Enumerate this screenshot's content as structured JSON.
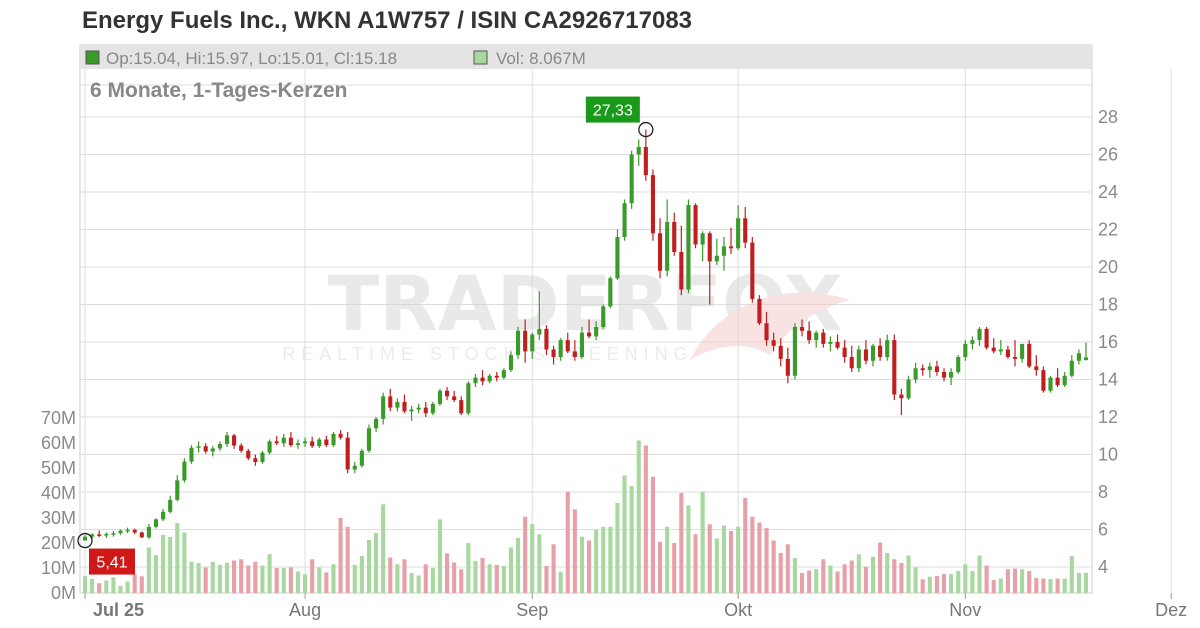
{
  "title": "Energy Fuels Inc., WKN A1W757 / ISIN CA2926717083",
  "info": {
    "ohlc": "Op:15.04, Hi:15.97, Lo:15.01, Cl:15.18",
    "volume": "Vol: 8.067M",
    "ohlc_color": "#3a9a2a",
    "volume_color": "#a8d8a0"
  },
  "period_label": "6 Monate, 1-Tages-Kerzen",
  "watermark": {
    "main": "TRADERFOX",
    "sub": "REALTIME STOCK SCREENING"
  },
  "colors": {
    "up": "#3a9a2a",
    "down": "#c01f1f",
    "vol_up": "#a8d8a0",
    "vol_down": "#e8a0a8",
    "grid": "#dddddd",
    "header_band": "#e4e4e4",
    "max_marker": "#1a9a1a",
    "min_marker": "#d01818"
  },
  "chart_data": {
    "type": "candlestick",
    "price_ticks": [
      "4",
      "6",
      "8",
      "10",
      "12",
      "14",
      "16",
      "18",
      "20",
      "22",
      "24",
      "26",
      "28"
    ],
    "volume_ticks": [
      "0M",
      "10M",
      "20M",
      "30M",
      "40M",
      "50M",
      "60M",
      "70M"
    ],
    "months": [
      "Jul 25",
      "Aug",
      "Sep",
      "Okt",
      "Nov",
      "Dez"
    ],
    "max_label": "27,33",
    "min_label": "5,41",
    "ylim": [
      3,
      29
    ],
    "vol_lim": [
      0,
      70
    ],
    "candles": [
      [
        5.41,
        5.7,
        5.41,
        5.62,
        6.7
      ],
      [
        5.62,
        5.8,
        5.5,
        5.74,
        5.6
      ],
      [
        5.74,
        5.95,
        5.6,
        5.68,
        3.9
      ],
      [
        5.68,
        5.85,
        5.55,
        5.76,
        5.0
      ],
      [
        5.76,
        5.92,
        5.62,
        5.8,
        6.3
      ],
      [
        5.8,
        6.0,
        5.7,
        5.94,
        2.8
      ],
      [
        5.94,
        6.1,
        5.8,
        5.98,
        4.6
      ],
      [
        5.98,
        6.05,
        5.75,
        5.84,
        7.5
      ],
      [
        5.84,
        5.9,
        5.55,
        5.58,
        6.7
      ],
      [
        5.58,
        6.3,
        5.5,
        6.14,
        18.2
      ],
      [
        6.14,
        6.6,
        6.05,
        6.54,
        15.2
      ],
      [
        6.54,
        7.1,
        6.45,
        6.94,
        23.2
      ],
      [
        6.94,
        7.8,
        6.85,
        7.58,
        22.4
      ],
      [
        7.58,
        8.9,
        7.5,
        8.62,
        28.0
      ],
      [
        8.62,
        9.8,
        8.5,
        9.62,
        24.2
      ],
      [
        9.62,
        10.5,
        9.5,
        10.36,
        12.5
      ],
      [
        10.36,
        10.7,
        10.1,
        10.44,
        12.0
      ],
      [
        10.44,
        10.6,
        10.05,
        10.16,
        10.2
      ],
      [
        10.16,
        10.45,
        9.9,
        10.32,
        12.5
      ],
      [
        10.32,
        10.7,
        10.2,
        10.56,
        11.2
      ],
      [
        10.56,
        11.2,
        10.4,
        11.02,
        12.0
      ],
      [
        11.02,
        11.1,
        10.3,
        10.48,
        13.0
      ],
      [
        10.48,
        10.6,
        10.1,
        10.2,
        13.5
      ],
      [
        10.2,
        10.3,
        9.7,
        9.8,
        11.0
      ],
      [
        9.8,
        10.0,
        9.4,
        9.6,
        12.5
      ],
      [
        9.6,
        10.2,
        9.5,
        10.1,
        11.0
      ],
      [
        10.1,
        10.8,
        10.0,
        10.7,
        15.5
      ],
      [
        10.7,
        11.0,
        10.5,
        10.6,
        10.0
      ],
      [
        10.6,
        11.1,
        10.4,
        10.9,
        10.0
      ],
      [
        10.9,
        11.2,
        10.4,
        10.5,
        10.2
      ],
      [
        10.5,
        10.8,
        10.3,
        10.6,
        8.6
      ],
      [
        10.6,
        10.9,
        10.4,
        10.7,
        7.5
      ],
      [
        10.7,
        10.95,
        10.35,
        10.45,
        13.5
      ],
      [
        10.45,
        10.9,
        10.35,
        10.8,
        10.2
      ],
      [
        10.8,
        11.0,
        10.4,
        10.5,
        8.2
      ],
      [
        10.5,
        11.2,
        10.4,
        11.1,
        11.5
      ],
      [
        11.1,
        11.3,
        10.8,
        10.9,
        30.0
      ],
      [
        10.9,
        11.2,
        9.0,
        9.2,
        26.5
      ],
      [
        9.2,
        9.6,
        9.0,
        9.4,
        11.2
      ],
      [
        9.4,
        10.3,
        9.3,
        10.2,
        14.8
      ],
      [
        10.2,
        11.6,
        10.1,
        11.4,
        21.2
      ],
      [
        11.4,
        12.0,
        11.2,
        11.9,
        24.0
      ],
      [
        11.9,
        13.3,
        11.6,
        13.1,
        35.5
      ],
      [
        13.1,
        13.5,
        12.3,
        12.5,
        14.2
      ],
      [
        12.5,
        13.0,
        12.3,
        12.8,
        11.5
      ],
      [
        12.8,
        13.2,
        12.2,
        12.3,
        13.5
      ],
      [
        12.3,
        12.6,
        11.8,
        12.4,
        8.0
      ],
      [
        12.4,
        12.7,
        12.2,
        12.5,
        7.0
      ],
      [
        12.5,
        12.8,
        12.0,
        12.2,
        11.5
      ],
      [
        12.2,
        12.8,
        12.1,
        12.7,
        10.0
      ],
      [
        12.7,
        13.5,
        12.6,
        13.4,
        29.5
      ],
      [
        13.4,
        13.6,
        12.9,
        13.1,
        15.8
      ],
      [
        13.1,
        13.4,
        12.8,
        12.9,
        12.2
      ],
      [
        12.9,
        13.1,
        12.1,
        12.2,
        9.5
      ],
      [
        12.2,
        13.9,
        12.1,
        13.8,
        20.0
      ],
      [
        13.8,
        14.3,
        13.6,
        14.1,
        12.8
      ],
      [
        14.1,
        14.5,
        13.7,
        13.9,
        14.0
      ],
      [
        13.9,
        14.3,
        13.8,
        14.2,
        11.5
      ],
      [
        14.2,
        14.4,
        13.9,
        14.1,
        11.2
      ],
      [
        14.1,
        14.6,
        14.0,
        14.5,
        10.8
      ],
      [
        14.5,
        15.5,
        14.4,
        15.3,
        18.2
      ],
      [
        15.3,
        16.8,
        15.1,
        16.6,
        22.0
      ],
      [
        16.6,
        17.2,
        14.9,
        15.5,
        30.5
      ],
      [
        15.5,
        16.5,
        15.1,
        16.4,
        27.5
      ],
      [
        16.4,
        18.7,
        16.1,
        16.7,
        23.5
      ],
      [
        16.7,
        16.9,
        15.3,
        15.6,
        10.8
      ],
      [
        15.6,
        15.8,
        14.8,
        15.2,
        19.5
      ],
      [
        15.2,
        16.2,
        15.0,
        16.1,
        8.5
      ],
      [
        16.1,
        16.5,
        15.4,
        15.5,
        40.5
      ],
      [
        15.5,
        16.1,
        15.0,
        15.2,
        33.5
      ],
      [
        15.2,
        16.8,
        15.1,
        16.5,
        22.5
      ],
      [
        16.5,
        17.2,
        16.2,
        16.3,
        21.0
      ],
      [
        16.3,
        17.1,
        16.1,
        16.8,
        25.2
      ],
      [
        16.8,
        18.0,
        16.7,
        17.9,
        26.5
      ],
      [
        17.9,
        19.5,
        17.8,
        19.4,
        26.5
      ],
      [
        19.4,
        22.0,
        19.3,
        21.6,
        36.0
      ],
      [
        21.6,
        23.6,
        21.4,
        23.4,
        47.0
      ],
      [
        23.4,
        26.2,
        23.1,
        26.0,
        42.8
      ],
      [
        26.0,
        26.8,
        25.4,
        26.4,
        61.0
      ],
      [
        26.4,
        27.33,
        24.6,
        24.9,
        59.0
      ],
      [
        24.9,
        25.2,
        21.4,
        21.8,
        46.5
      ],
      [
        21.8,
        22.6,
        19.4,
        19.8,
        20.5
      ],
      [
        19.8,
        23.6,
        19.5,
        22.4,
        26.5
      ],
      [
        22.4,
        22.9,
        20.6,
        20.8,
        20.0
      ],
      [
        20.8,
        22.2,
        18.5,
        18.8,
        40.0
      ],
      [
        18.8,
        23.6,
        18.6,
        23.3,
        35.0
      ],
      [
        23.3,
        23.4,
        21.0,
        21.2,
        23.5
      ],
      [
        21.2,
        21.9,
        20.3,
        21.8,
        40.5
      ],
      [
        21.8,
        21.9,
        18.0,
        20.3,
        27.5
      ],
      [
        20.3,
        21.5,
        20.1,
        20.6,
        21.8
      ],
      [
        20.6,
        21.6,
        19.8,
        21.1,
        27.0
      ],
      [
        21.1,
        22.1,
        20.7,
        21.0,
        24.8
      ],
      [
        21.0,
        23.3,
        20.9,
        22.6,
        26.5
      ],
      [
        22.6,
        23.2,
        21.0,
        21.3,
        38.0
      ],
      [
        21.3,
        21.6,
        18.1,
        18.3,
        30.5
      ],
      [
        18.3,
        18.5,
        16.9,
        17.0,
        28.2
      ],
      [
        17.0,
        17.6,
        15.8,
        16.1,
        26.0
      ],
      [
        16.1,
        16.5,
        15.5,
        15.8,
        21.0
      ],
      [
        15.8,
        16.2,
        14.7,
        15.1,
        16.0
      ],
      [
        15.1,
        15.7,
        13.8,
        14.2,
        19.5
      ],
      [
        14.2,
        17.0,
        14.0,
        16.8,
        14.0
      ],
      [
        16.8,
        17.2,
        16.3,
        16.6,
        8.0
      ],
      [
        16.6,
        17.1,
        15.9,
        16.1,
        9.0
      ],
      [
        16.1,
        16.6,
        15.7,
        16.5,
        9.5
      ],
      [
        16.5,
        16.7,
        15.7,
        15.9,
        13.5
      ],
      [
        15.9,
        16.3,
        15.5,
        16.0,
        11.0
      ],
      [
        16.0,
        16.4,
        15.6,
        15.7,
        8.6
      ],
      [
        15.7,
        16.1,
        14.9,
        15.2,
        11.5
      ],
      [
        15.2,
        15.8,
        14.4,
        14.6,
        13.0
      ],
      [
        14.6,
        15.8,
        14.4,
        15.6,
        15.5
      ],
      [
        15.6,
        16.1,
        14.8,
        15.0,
        10.5
      ],
      [
        15.0,
        15.9,
        14.7,
        15.8,
        14.5
      ],
      [
        15.8,
        16.2,
        15.0,
        15.2,
        20.2
      ],
      [
        15.2,
        16.4,
        15.0,
        16.1,
        16.0
      ],
      [
        16.1,
        16.4,
        12.9,
        13.2,
        13.5
      ],
      [
        13.2,
        13.5,
        12.1,
        13.0,
        12.0
      ],
      [
        13.0,
        14.2,
        12.9,
        14.0,
        15.0
      ],
      [
        14.0,
        14.9,
        13.8,
        14.6,
        10.2
      ],
      [
        14.6,
        14.8,
        14.2,
        14.5,
        5.5
      ],
      [
        14.5,
        14.9,
        14.1,
        14.7,
        6.5
      ],
      [
        14.7,
        15.0,
        14.2,
        14.4,
        6.8
      ],
      [
        14.4,
        14.6,
        13.9,
        14.1,
        7.6
      ],
      [
        14.1,
        14.6,
        13.7,
        14.4,
        7.5
      ],
      [
        14.4,
        15.3,
        14.3,
        15.2,
        8.8
      ],
      [
        15.2,
        16.1,
        15.0,
        15.9,
        11.5
      ],
      [
        15.9,
        16.3,
        15.6,
        16.1,
        8.8
      ],
      [
        16.1,
        16.8,
        15.8,
        16.7,
        15.0
      ],
      [
        16.7,
        16.8,
        15.6,
        15.7,
        11.0
      ],
      [
        15.7,
        16.2,
        15.4,
        15.5,
        5.2
      ],
      [
        15.5,
        16.1,
        15.3,
        15.6,
        5.8
      ],
      [
        15.6,
        15.8,
        15.1,
        15.2,
        9.5
      ],
      [
        15.2,
        16.1,
        14.7,
        15.1,
        9.8
      ],
      [
        15.1,
        15.9,
        14.9,
        15.9,
        9.5
      ],
      [
        15.9,
        16.1,
        14.6,
        14.7,
        8.8
      ],
      [
        14.7,
        15.3,
        14.2,
        14.5,
        6.0
      ],
      [
        14.5,
        14.7,
        13.3,
        13.4,
        5.8
      ],
      [
        13.4,
        14.2,
        13.3,
        14.1,
        5.6
      ],
      [
        14.1,
        14.6,
        13.6,
        13.7,
        5.8
      ],
      [
        13.7,
        14.4,
        13.6,
        14.2,
        5.8
      ],
      [
        14.2,
        15.3,
        14.1,
        15.0,
        14.8
      ],
      [
        15.0,
        15.6,
        14.8,
        15.4,
        8.0
      ],
      [
        15.04,
        15.97,
        15.01,
        15.18,
        8.067
      ]
    ]
  }
}
